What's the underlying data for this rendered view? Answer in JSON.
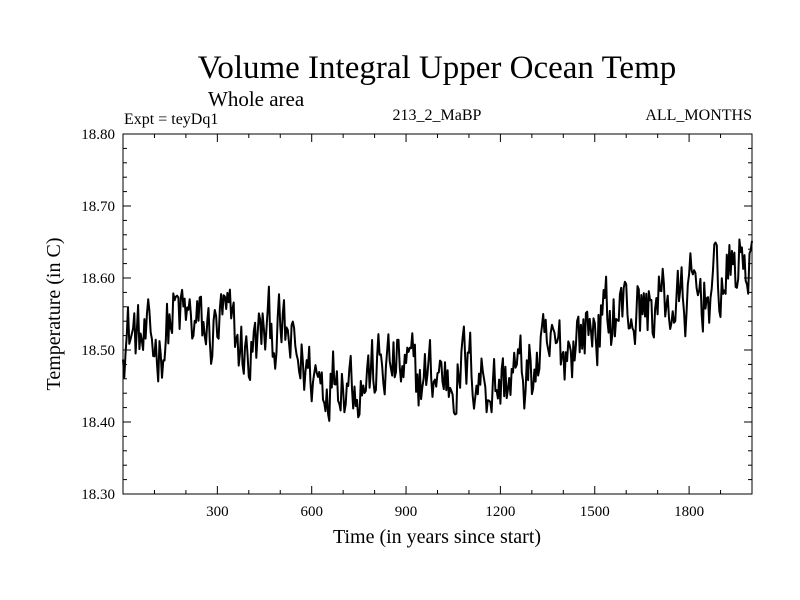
{
  "chart_data": {
    "type": "line",
    "title": "Volume Integral Upper Ocean Temp",
    "subtitle": "Whole area",
    "expt_label": "Expt = teyDq1",
    "run_label": "213_2_MaBP",
    "months_label": "ALL_MONTHS",
    "xlabel": "Time (in years since start)",
    "ylabel": "Temperature (in C)",
    "xlim": [
      0,
      2000
    ],
    "ylim": [
      18.3,
      18.8
    ],
    "x_ticks": [
      300,
      600,
      900,
      1200,
      1500,
      1800
    ],
    "y_ticks": [
      18.3,
      18.4,
      18.5,
      18.6,
      18.7,
      18.8
    ],
    "y_tick_labels": [
      "18.30",
      "18.40",
      "18.50",
      "18.60",
      "18.70",
      "18.80"
    ],
    "line_color": "#000000",
    "series": [
      {
        "name": "Volume integral upper ocean temperature",
        "x": [
          0,
          40,
          80,
          120,
          160,
          200,
          240,
          280,
          320,
          360,
          400,
          440,
          480,
          520,
          560,
          600,
          640,
          680,
          720,
          760,
          800,
          840,
          880,
          920,
          960,
          1000,
          1040,
          1080,
          1120,
          1160,
          1200,
          1240,
          1280,
          1320,
          1360,
          1400,
          1440,
          1480,
          1520,
          1560,
          1600,
          1640,
          1680,
          1720,
          1760,
          1800,
          1840,
          1880,
          1920,
          1960,
          2000
        ],
        "values": [
          18.53,
          18.52,
          18.5,
          18.51,
          18.55,
          18.54,
          18.53,
          18.52,
          18.54,
          18.51,
          18.49,
          18.52,
          18.53,
          18.51,
          18.48,
          18.47,
          18.46,
          18.48,
          18.47,
          18.46,
          18.47,
          18.48,
          18.47,
          18.46,
          18.46,
          18.47,
          18.46,
          18.48,
          18.47,
          18.46,
          18.45,
          18.47,
          18.46,
          18.48,
          18.49,
          18.5,
          18.52,
          18.53,
          18.54,
          18.55,
          18.56,
          18.55,
          18.56,
          18.57,
          18.56,
          18.57,
          18.58,
          18.59,
          18.6,
          18.62,
          18.63
        ]
      }
    ]
  }
}
